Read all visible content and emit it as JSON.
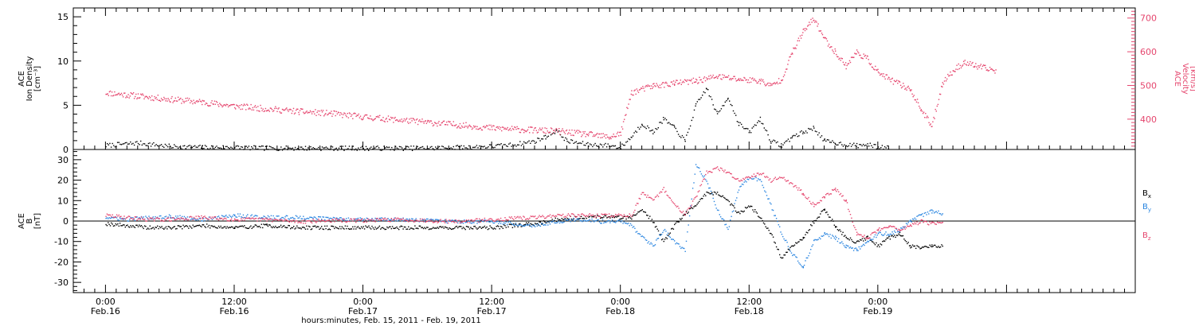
{
  "chart_data": [
    {
      "type": "scatter",
      "ylabel_left": [
        "ACE",
        "Ion Density",
        "[cm⁻³]"
      ],
      "ylabel_right": [
        "ACE",
        "Velocity",
        "[km/s]"
      ],
      "ylim_left": [
        0,
        16
      ],
      "ylim_right": [
        310,
        730
      ],
      "yticks_left": [
        "0",
        "5",
        "10",
        "15"
      ],
      "yticks_right": [
        "400",
        "500",
        "600",
        "700"
      ],
      "series": [
        {
          "axis": "left",
          "color": "#000000",
          "points": [
            [
              0,
              0.5
            ],
            [
              3,
              0.8
            ],
            [
              6,
              0.4
            ],
            [
              9,
              0.3
            ],
            [
              12,
              0.3
            ],
            [
              15,
              0.2
            ],
            [
              18,
              0.2
            ],
            [
              21,
              0.2
            ],
            [
              24,
              0.2
            ],
            [
              27,
              0.2
            ],
            [
              30,
              0.2
            ],
            [
              33,
              0.3
            ],
            [
              36,
              0.4
            ],
            [
              38,
              0.6
            ],
            [
              40,
              1.0
            ],
            [
              41,
              1.5
            ],
            [
              42,
              2.2
            ],
            [
              43,
              1.0
            ],
            [
              45,
              0.6
            ],
            [
              47,
              0.5
            ],
            [
              48,
              0.3
            ],
            [
              49,
              1.5
            ],
            [
              50,
              3.0
            ],
            [
              51,
              2.0
            ],
            [
              52,
              3.5
            ],
            [
              53,
              2.5
            ],
            [
              54,
              1.0
            ],
            [
              55,
              5.0
            ],
            [
              56,
              7.0
            ],
            [
              57,
              4.0
            ],
            [
              58,
              6.0
            ],
            [
              59,
              3.0
            ],
            [
              60,
              2.0
            ],
            [
              61,
              3.5
            ],
            [
              62,
              1.0
            ],
            [
              63,
              0.5
            ],
            [
              64,
              1.5
            ],
            [
              65,
              2.0
            ],
            [
              66,
              2.5
            ],
            [
              67,
              1.0
            ],
            [
              68,
              0.8
            ],
            [
              69,
              0.6
            ],
            [
              70,
              0.5
            ],
            [
              71,
              0.6
            ],
            [
              72,
              0.3
            ],
            [
              73,
              0.3
            ]
          ]
        },
        {
          "axis": "right",
          "color": "#e5466e",
          "points": [
            [
              0,
              480
            ],
            [
              3,
              470
            ],
            [
              6,
              460
            ],
            [
              9,
              452
            ],
            [
              12,
              440
            ],
            [
              15,
              432
            ],
            [
              18,
              424
            ],
            [
              21,
              418
            ],
            [
              24,
              408
            ],
            [
              27,
              400
            ],
            [
              30,
              392
            ],
            [
              33,
              384
            ],
            [
              36,
              375
            ],
            [
              39,
              370
            ],
            [
              42,
              366
            ],
            [
              45,
              356
            ],
            [
              47,
              348
            ],
            [
              48,
              360
            ],
            [
              49,
              480
            ],
            [
              51,
              500
            ],
            [
              53,
              508
            ],
            [
              55,
              515
            ],
            [
              57,
              528
            ],
            [
              59,
              520
            ],
            [
              61,
              515
            ],
            [
              62,
              500
            ],
            [
              63,
              520
            ],
            [
              64,
              600
            ],
            [
              65,
              660
            ],
            [
              66,
              700
            ],
            [
              67,
              640
            ],
            [
              68,
              600
            ],
            [
              69,
              560
            ],
            [
              70,
              600
            ],
            [
              71,
              580
            ],
            [
              72,
              540
            ],
            [
              73,
              520
            ],
            [
              74,
              505
            ],
            [
              75,
              490
            ],
            [
              76,
              430
            ],
            [
              77,
              380
            ],
            [
              78,
              510
            ],
            [
              79,
              545
            ],
            [
              80,
              570
            ],
            [
              81,
              560
            ],
            [
              82,
              552
            ],
            [
              83,
              545
            ]
          ]
        }
      ]
    },
    {
      "type": "scatter",
      "ylabel_left": [
        "ACE",
        "B",
        "[nT]"
      ],
      "ylim": [
        -35,
        35
      ],
      "yticks": [
        "-30",
        "-20",
        "-10",
        "0",
        "10",
        "20",
        "30"
      ],
      "legend": [
        "Bₓ",
        "Bᵧ",
        "B_z"
      ],
      "legend_display": [
        "B",
        "B",
        "B"
      ],
      "legend_sub": [
        "x",
        "y",
        "z"
      ],
      "series": [
        {
          "color": "#000000",
          "points": [
            [
              0,
              -1
            ],
            [
              2,
              -2
            ],
            [
              4,
              -3
            ],
            [
              6,
              -3
            ],
            [
              9,
              -2
            ],
            [
              12,
              -3
            ],
            [
              15,
              -2
            ],
            [
              18,
              -3
            ],
            [
              21,
              -3
            ],
            [
              24,
              -3
            ],
            [
              27,
              -3
            ],
            [
              30,
              -3
            ],
            [
              33,
              -3
            ],
            [
              36,
              -3
            ],
            [
              38,
              -2
            ],
            [
              40,
              -1
            ],
            [
              42,
              1
            ],
            [
              44,
              2
            ],
            [
              46,
              2.5
            ],
            [
              48,
              2
            ],
            [
              49,
              2
            ],
            [
              50,
              6
            ],
            [
              51,
              0
            ],
            [
              52,
              -10
            ],
            [
              53,
              -2
            ],
            [
              54,
              4
            ],
            [
              55,
              8
            ],
            [
              56,
              14
            ],
            [
              57,
              14
            ],
            [
              58,
              10
            ],
            [
              59,
              4
            ],
            [
              60,
              8
            ],
            [
              61,
              2
            ],
            [
              62,
              -6
            ],
            [
              63,
              -18
            ],
            [
              64,
              -12
            ],
            [
              65,
              -8
            ],
            [
              66,
              0
            ],
            [
              67,
              6
            ],
            [
              68,
              -2
            ],
            [
              69,
              -8
            ],
            [
              70,
              -10
            ],
            [
              71,
              -8
            ],
            [
              72,
              -12
            ],
            [
              73,
              -8
            ],
            [
              74,
              -6
            ],
            [
              75,
              -12
            ],
            [
              76,
              -13
            ],
            [
              77,
              -12
            ],
            [
              78,
              -12
            ]
          ]
        },
        {
          "color": "#2b86e0",
          "points": [
            [
              0,
              2
            ],
            [
              2,
              1
            ],
            [
              4,
              2
            ],
            [
              6,
              2.5
            ],
            [
              9,
              1
            ],
            [
              12,
              3
            ],
            [
              15,
              2
            ],
            [
              18,
              2
            ],
            [
              21,
              1.5
            ],
            [
              24,
              1
            ],
            [
              27,
              1
            ],
            [
              30,
              0.5
            ],
            [
              33,
              0
            ],
            [
              36,
              0
            ],
            [
              38,
              -1
            ],
            [
              40,
              -2
            ],
            [
              42,
              0
            ],
            [
              44,
              1
            ],
            [
              46,
              0
            ],
            [
              48,
              0
            ],
            [
              49,
              -2
            ],
            [
              50,
              -8
            ],
            [
              51,
              -12
            ],
            [
              52,
              -4
            ],
            [
              53,
              -10
            ],
            [
              54,
              -14
            ],
            [
              55,
              28
            ],
            [
              56,
              20
            ],
            [
              57,
              6
            ],
            [
              58,
              -4
            ],
            [
              59,
              16
            ],
            [
              60,
              22
            ],
            [
              61,
              20
            ],
            [
              62,
              8
            ],
            [
              63,
              -6
            ],
            [
              64,
              -16
            ],
            [
              65,
              -22
            ],
            [
              66,
              -10
            ],
            [
              67,
              -6
            ],
            [
              68,
              -8
            ],
            [
              69,
              -12
            ],
            [
              70,
              -14
            ],
            [
              71,
              -10
            ],
            [
              72,
              -6
            ],
            [
              73,
              -6
            ],
            [
              74,
              -4
            ],
            [
              75,
              0
            ],
            [
              76,
              3
            ],
            [
              77,
              5
            ],
            [
              78,
              4
            ]
          ]
        },
        {
          "color": "#e5466e",
          "points": [
            [
              0,
              3
            ],
            [
              2,
              2
            ],
            [
              4,
              1
            ],
            [
              6,
              1
            ],
            [
              9,
              2
            ],
            [
              12,
              1
            ],
            [
              15,
              1
            ],
            [
              18,
              0
            ],
            [
              21,
              0.5
            ],
            [
              24,
              0.5
            ],
            [
              27,
              1
            ],
            [
              30,
              0.5
            ],
            [
              33,
              0
            ],
            [
              36,
              1
            ],
            [
              38,
              1.5
            ],
            [
              40,
              2
            ],
            [
              42,
              3
            ],
            [
              44,
              3
            ],
            [
              46,
              3
            ],
            [
              48,
              3
            ],
            [
              49,
              3
            ],
            [
              50,
              14
            ],
            [
              51,
              10
            ],
            [
              52,
              16
            ],
            [
              53,
              8
            ],
            [
              54,
              4
            ],
            [
              55,
              12
            ],
            [
              56,
              24
            ],
            [
              57,
              26
            ],
            [
              58,
              24
            ],
            [
              59,
              20
            ],
            [
              60,
              22
            ],
            [
              61,
              24
            ],
            [
              62,
              20
            ],
            [
              63,
              22
            ],
            [
              64,
              18
            ],
            [
              65,
              14
            ],
            [
              66,
              8
            ],
            [
              67,
              12
            ],
            [
              68,
              16
            ],
            [
              69,
              10
            ],
            [
              70,
              -6
            ],
            [
              71,
              -8
            ],
            [
              72,
              -4
            ],
            [
              73,
              -2
            ],
            [
              74,
              -4
            ],
            [
              75,
              -2
            ],
            [
              76,
              0
            ],
            [
              77,
              -1
            ],
            [
              78,
              0
            ]
          ]
        }
      ]
    }
  ],
  "x_axis": {
    "range_hours": [
      -3,
      96
    ],
    "major": [
      {
        "hours": 0,
        "time": "0:00",
        "date": "Feb.16"
      },
      {
        "hours": 12,
        "time": "12:00",
        "date": "Feb.16"
      },
      {
        "hours": 24,
        "time": "0:00",
        "date": "Feb.17"
      },
      {
        "hours": 36,
        "time": "12:00",
        "date": "Feb.17"
      },
      {
        "hours": 48,
        "time": "0:00",
        "date": "Feb.18"
      },
      {
        "hours": 60,
        "time": "12:00",
        "date": "Feb.18"
      },
      {
        "hours": 72,
        "time": "0:00",
        "date": "Feb.19"
      }
    ],
    "xlabel": "hours:minutes, Feb. 15, 2011 - Feb. 19, 2011"
  }
}
